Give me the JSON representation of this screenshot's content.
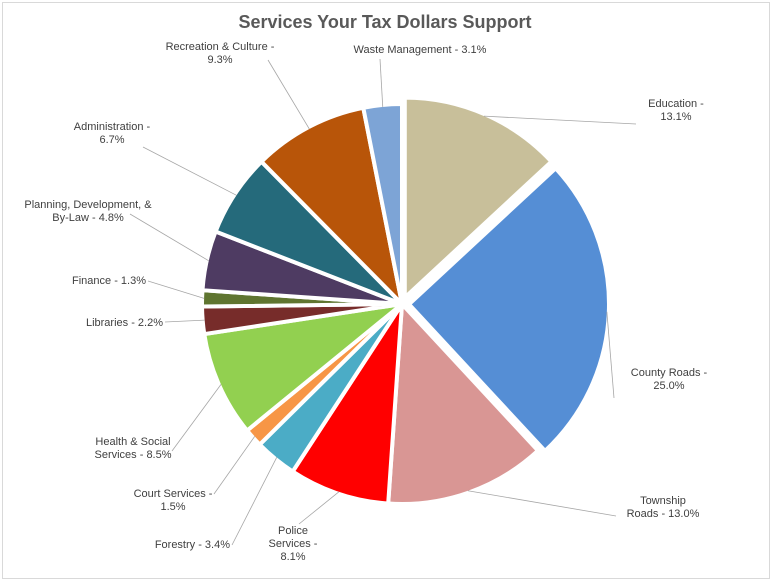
{
  "chart_data": {
    "type": "pie",
    "title": "Services Your Tax Dollars Support",
    "start_angle_deg": 0,
    "direction": "clockwise",
    "slices": [
      {
        "label": [
          "Education -",
          "13.1%"
        ],
        "value": 13.1,
        "color": "#c8bf9a"
      },
      {
        "label": [
          "County Roads -",
          "25.0%"
        ],
        "value": 25.0,
        "color": "#558ed5"
      },
      {
        "label": [
          "Township",
          "Roads - 13.0%"
        ],
        "value": 13.0,
        "color": "#d99694"
      },
      {
        "label": [
          "Police",
          "Services -",
          "8.1%"
        ],
        "value": 8.1,
        "color": "#ff0000"
      },
      {
        "label": [
          "Forestry - 3.4%"
        ],
        "value": 3.4,
        "color": "#4bacc6"
      },
      {
        "label": [
          "Court Services -",
          "1.5%"
        ],
        "value": 1.5,
        "color": "#f79646"
      },
      {
        "label": [
          "Health & Social",
          "Services - 8.5%"
        ],
        "value": 8.5,
        "color": "#92d050"
      },
      {
        "label": [
          "Libraries - 2.2%"
        ],
        "value": 2.2,
        "color": "#772c2a"
      },
      {
        "label": [
          "Finance - 1.3%"
        ],
        "value": 1.3,
        "color": "#5f7530"
      },
      {
        "label": [
          "Planning, Development, &",
          "By-Law - 4.8%"
        ],
        "value": 4.8,
        "color": "#4e3b62"
      },
      {
        "label": [
          "Administration -",
          "6.7%"
        ],
        "value": 6.7,
        "color": "#256a7b"
      },
      {
        "label": [
          "Recreation & Culture -",
          "9.3%"
        ],
        "value": 9.3,
        "color": "#b85509"
      },
      {
        "label": [
          "Waste Management - 3.1%"
        ],
        "value": 3.1,
        "color": "#7da4d6"
      }
    ],
    "legend": "none"
  }
}
